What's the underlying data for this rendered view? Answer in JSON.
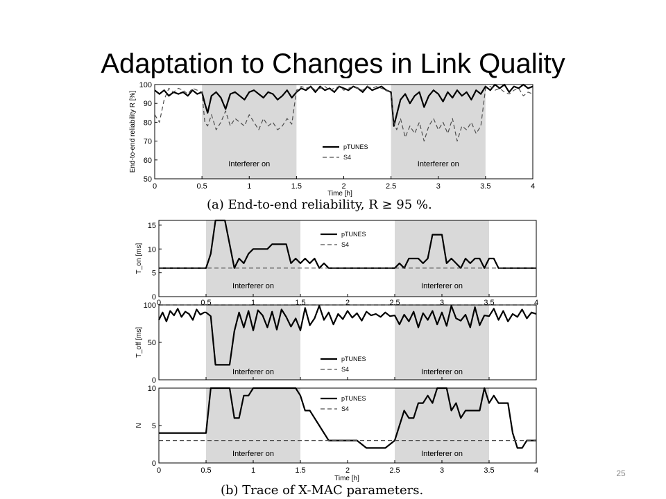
{
  "slide": {
    "title": "Adaptation to Changes in Link Quality",
    "page_number": "25"
  },
  "colors": {
    "shade": "#d9d9d9",
    "ptunes": "#000000",
    "s4": "#4d4d4d"
  },
  "chart_data": [
    {
      "id": "reliability",
      "type": "line",
      "caption": "(a) End-to-end reliability, R ≥ 95 %.",
      "xlabel": "Time [h]",
      "ylabel": "End-to-end reliability R [%]",
      "xlim": [
        0,
        4
      ],
      "ylim": [
        50,
        100
      ],
      "xticks": [
        "0",
        "0.5",
        "1",
        "1.5",
        "2",
        "2.5",
        "3",
        "3.5",
        "4"
      ],
      "yticks": [
        "50",
        "60",
        "70",
        "80",
        "90",
        "100"
      ],
      "shaded_intervals": [
        [
          0.5,
          1.5
        ],
        [
          2.5,
          3.5
        ]
      ],
      "annotations": [
        "Interferer on",
        "Interferer on"
      ],
      "legend": [
        "pTUNES",
        "S4"
      ],
      "series": [
        {
          "name": "pTUNES",
          "style": "solid",
          "x": [
            0,
            0.05,
            0.1,
            0.15,
            0.2,
            0.25,
            0.3,
            0.35,
            0.4,
            0.45,
            0.5,
            0.53,
            0.56,
            0.6,
            0.65,
            0.7,
            0.75,
            0.8,
            0.85,
            0.9,
            0.95,
            1.0,
            1.05,
            1.1,
            1.15,
            1.2,
            1.25,
            1.3,
            1.35,
            1.4,
            1.45,
            1.5,
            1.55,
            1.6,
            1.65,
            1.7,
            1.75,
            1.8,
            1.85,
            1.9,
            1.95,
            2.0,
            2.05,
            2.1,
            2.15,
            2.2,
            2.25,
            2.3,
            2.35,
            2.4,
            2.45,
            2.5,
            2.53,
            2.56,
            2.6,
            2.65,
            2.7,
            2.75,
            2.8,
            2.85,
            2.9,
            2.95,
            3.0,
            3.05,
            3.1,
            3.15,
            3.2,
            3.25,
            3.3,
            3.35,
            3.4,
            3.45,
            3.5,
            3.55,
            3.6,
            3.65,
            3.7,
            3.75,
            3.8,
            3.85,
            3.9,
            3.95,
            4.0
          ],
          "y": [
            97,
            95,
            97,
            94,
            96,
            95,
            96,
            94,
            97,
            95,
            96,
            90,
            85,
            94,
            96,
            93,
            87,
            95,
            96,
            94,
            92,
            96,
            97,
            95,
            93,
            96,
            95,
            92,
            94,
            97,
            93,
            96,
            98,
            97,
            99,
            96,
            99,
            97,
            98,
            96,
            99,
            98,
            97,
            99,
            98,
            96,
            99,
            97,
            98,
            99,
            97,
            96,
            78,
            84,
            92,
            95,
            90,
            94,
            96,
            88,
            94,
            97,
            95,
            91,
            96,
            93,
            97,
            94,
            96,
            92,
            97,
            95,
            99,
            97,
            100,
            98,
            100,
            96,
            99,
            98,
            100,
            98,
            99
          ]
        },
        {
          "name": "S4",
          "style": "dashed",
          "x": [
            0,
            0.05,
            0.1,
            0.15,
            0.2,
            0.25,
            0.3,
            0.35,
            0.4,
            0.45,
            0.5,
            0.53,
            0.56,
            0.6,
            0.65,
            0.7,
            0.75,
            0.8,
            0.85,
            0.9,
            0.95,
            1.0,
            1.05,
            1.1,
            1.15,
            1.2,
            1.25,
            1.3,
            1.35,
            1.4,
            1.45,
            1.5,
            1.55,
            1.6,
            1.65,
            1.7,
            1.75,
            1.8,
            1.85,
            1.9,
            1.95,
            2.0,
            2.05,
            2.1,
            2.15,
            2.2,
            2.25,
            2.3,
            2.35,
            2.4,
            2.45,
            2.5,
            2.53,
            2.56,
            2.6,
            2.65,
            2.7,
            2.75,
            2.8,
            2.85,
            2.9,
            2.95,
            3.0,
            3.05,
            3.1,
            3.15,
            3.2,
            3.25,
            3.3,
            3.35,
            3.4,
            3.45,
            3.5,
            3.55,
            3.6,
            3.65,
            3.7,
            3.75,
            3.8,
            3.85,
            3.9,
            3.95,
            4.0
          ],
          "y": [
            84,
            80,
            92,
            98,
            96,
            98,
            97,
            95,
            98,
            97,
            96,
            80,
            78,
            84,
            76,
            80,
            86,
            78,
            82,
            80,
            78,
            84,
            80,
            76,
            82,
            78,
            80,
            76,
            78,
            82,
            79,
            97,
            99,
            98,
            99,
            97,
            98,
            99,
            97,
            98,
            99,
            97,
            98,
            99,
            98,
            97,
            99,
            98,
            99,
            98,
            97,
            96,
            80,
            76,
            82,
            72,
            78,
            74,
            80,
            70,
            78,
            82,
            76,
            80,
            74,
            82,
            70,
            78,
            76,
            80,
            74,
            78,
            98,
            99,
            97,
            98,
            96,
            95,
            97,
            98,
            94,
            96,
            95
          ]
        }
      ]
    },
    {
      "id": "ton",
      "type": "line",
      "ylabel": "T_on [ms]",
      "xlim": [
        0,
        4
      ],
      "ylim": [
        0,
        16
      ],
      "xticks": [
        "0",
        "0.5",
        "1",
        "1.5",
        "2",
        "2.5",
        "3",
        "3.5",
        "4"
      ],
      "yticks": [
        "0",
        "5",
        "10",
        "15"
      ],
      "shaded_intervals": [
        [
          0.5,
          1.5
        ],
        [
          2.5,
          3.5
        ]
      ],
      "annotations": [
        "Interferer on",
        "Interferer on"
      ],
      "legend": [
        "pTUNES",
        "S4"
      ],
      "series": [
        {
          "name": "pTUNES",
          "style": "solid",
          "x": [
            0,
            0.5,
            0.55,
            0.6,
            0.7,
            0.75,
            0.8,
            0.85,
            0.9,
            0.95,
            1.0,
            1.05,
            1.1,
            1.15,
            1.2,
            1.25,
            1.3,
            1.35,
            1.4,
            1.45,
            1.5,
            1.55,
            1.6,
            1.65,
            1.7,
            1.75,
            1.8,
            2.0,
            2.5,
            2.55,
            2.6,
            2.65,
            2.7,
            2.75,
            2.8,
            2.85,
            2.9,
            2.95,
            3.0,
            3.05,
            3.1,
            3.15,
            3.2,
            3.25,
            3.3,
            3.35,
            3.4,
            3.45,
            3.5,
            3.55,
            3.6,
            3.7,
            4.0
          ],
          "y": [
            6,
            6,
            9,
            16,
            16,
            11,
            6,
            8,
            7,
            9,
            10,
            10,
            10,
            10,
            11,
            11,
            11,
            11,
            7,
            8,
            7,
            8,
            7,
            8,
            6,
            7,
            6,
            6,
            6,
            7,
            6,
            8,
            8,
            8,
            7,
            8,
            13,
            13,
            13,
            7,
            8,
            7,
            6,
            8,
            7,
            8,
            8,
            6,
            8,
            8,
            6,
            6,
            6
          ]
        },
        {
          "name": "S4",
          "style": "dashed",
          "x": [
            0,
            4
          ],
          "y": [
            6,
            6
          ]
        }
      ]
    },
    {
      "id": "toff",
      "type": "line",
      "ylabel": "T_off [ms]",
      "xlim": [
        0,
        4
      ],
      "ylim": [
        0,
        100
      ],
      "xticks": [],
      "yticks": [
        "0",
        "50",
        "100"
      ],
      "shaded_intervals": [
        [
          0.5,
          1.5
        ],
        [
          2.5,
          3.5
        ]
      ],
      "annotations": [
        "Interferer on",
        "Interferer on"
      ],
      "legend": [
        "pTUNES",
        "S4"
      ],
      "series": [
        {
          "name": "pTUNES",
          "style": "solid",
          "x": [
            0,
            0.04,
            0.08,
            0.12,
            0.16,
            0.2,
            0.24,
            0.28,
            0.32,
            0.36,
            0.4,
            0.44,
            0.48,
            0.5,
            0.55,
            0.6,
            0.65,
            0.7,
            0.75,
            0.8,
            0.85,
            0.9,
            0.95,
            1.0,
            1.05,
            1.1,
            1.15,
            1.2,
            1.25,
            1.3,
            1.35,
            1.4,
            1.45,
            1.5,
            1.55,
            1.6,
            1.65,
            1.7,
            1.75,
            1.8,
            1.85,
            1.9,
            1.95,
            2.0,
            2.05,
            2.1,
            2.15,
            2.2,
            2.25,
            2.3,
            2.35,
            2.4,
            2.45,
            2.5,
            2.55,
            2.6,
            2.65,
            2.7,
            2.75,
            2.8,
            2.85,
            2.9,
            2.95,
            3.0,
            3.05,
            3.1,
            3.15,
            3.2,
            3.25,
            3.3,
            3.35,
            3.4,
            3.45,
            3.5,
            3.55,
            3.6,
            3.65,
            3.7,
            3.75,
            3.8,
            3.85,
            3.9,
            3.95,
            4.0
          ],
          "y": [
            80,
            90,
            78,
            92,
            86,
            95,
            84,
            91,
            88,
            80,
            94,
            87,
            90,
            90,
            85,
            20,
            20,
            20,
            20,
            65,
            90,
            70,
            92,
            66,
            93,
            86,
            70,
            91,
            67,
            94,
            84,
            71,
            82,
            66,
            96,
            73,
            82,
            99,
            80,
            90,
            74,
            88,
            81,
            92,
            83,
            89,
            79,
            91,
            86,
            88,
            84,
            90,
            85,
            86,
            74,
            87,
            78,
            91,
            70,
            89,
            80,
            92,
            74,
            90,
            72,
            99,
            82,
            79,
            87,
            70,
            97,
            73,
            86,
            85,
            95,
            80,
            92,
            78,
            88,
            84,
            94,
            82,
            90,
            88
          ]
        },
        {
          "name": "S4",
          "style": "dashed",
          "x": [
            0,
            4
          ],
          "y": [
            100,
            100
          ]
        }
      ]
    },
    {
      "id": "n",
      "type": "line",
      "caption": "(b) Trace of X-MAC parameters.",
      "xlabel": "Time [h]",
      "ylabel": "N",
      "xlim": [
        0,
        4
      ],
      "ylim": [
        0,
        10
      ],
      "xticks": [
        "0",
        "0.5",
        "1",
        "1.5",
        "2",
        "2.5",
        "3",
        "3.5",
        "4"
      ],
      "yticks": [
        "0",
        "5",
        "10"
      ],
      "shaded_intervals": [
        [
          0.5,
          1.5
        ],
        [
          2.5,
          3.5
        ]
      ],
      "annotations": [
        "Interferer on",
        "Interferer on"
      ],
      "legend": [
        "pTUNES",
        "S4"
      ],
      "series": [
        {
          "name": "pTUNES",
          "style": "solid",
          "x": [
            0,
            0.5,
            0.55,
            0.6,
            0.7,
            0.75,
            0.8,
            0.85,
            0.9,
            0.95,
            1.0,
            1.05,
            1.1,
            1.15,
            1.2,
            1.25,
            1.3,
            1.35,
            1.4,
            1.45,
            1.5,
            1.55,
            1.6,
            1.65,
            1.7,
            1.75,
            1.8,
            1.9,
            2.0,
            2.1,
            2.2,
            2.3,
            2.4,
            2.5,
            2.55,
            2.6,
            2.65,
            2.7,
            2.75,
            2.8,
            2.85,
            2.9,
            2.95,
            3.0,
            3.05,
            3.1,
            3.15,
            3.2,
            3.25,
            3.3,
            3.35,
            3.4,
            3.45,
            3.5,
            3.55,
            3.6,
            3.65,
            3.7,
            3.75,
            3.8,
            3.85,
            3.9,
            4.0
          ],
          "y": [
            4,
            4,
            10,
            10,
            10,
            10,
            6,
            6,
            9,
            9,
            10,
            10,
            10,
            10,
            10,
            10,
            10,
            10,
            10,
            10,
            9,
            7,
            7,
            6,
            5,
            4,
            3,
            3,
            3,
            3,
            2,
            2,
            2,
            3,
            5,
            7,
            6,
            6,
            8,
            8,
            9,
            8,
            10,
            10,
            10,
            7,
            8,
            6,
            7,
            7,
            7,
            7,
            10,
            8,
            9,
            8,
            8,
            8,
            4,
            2,
            2,
            3,
            3
          ]
        },
        {
          "name": "S4",
          "style": "dashed",
          "x": [
            0,
            4
          ],
          "y": [
            3,
            3
          ]
        }
      ]
    }
  ]
}
